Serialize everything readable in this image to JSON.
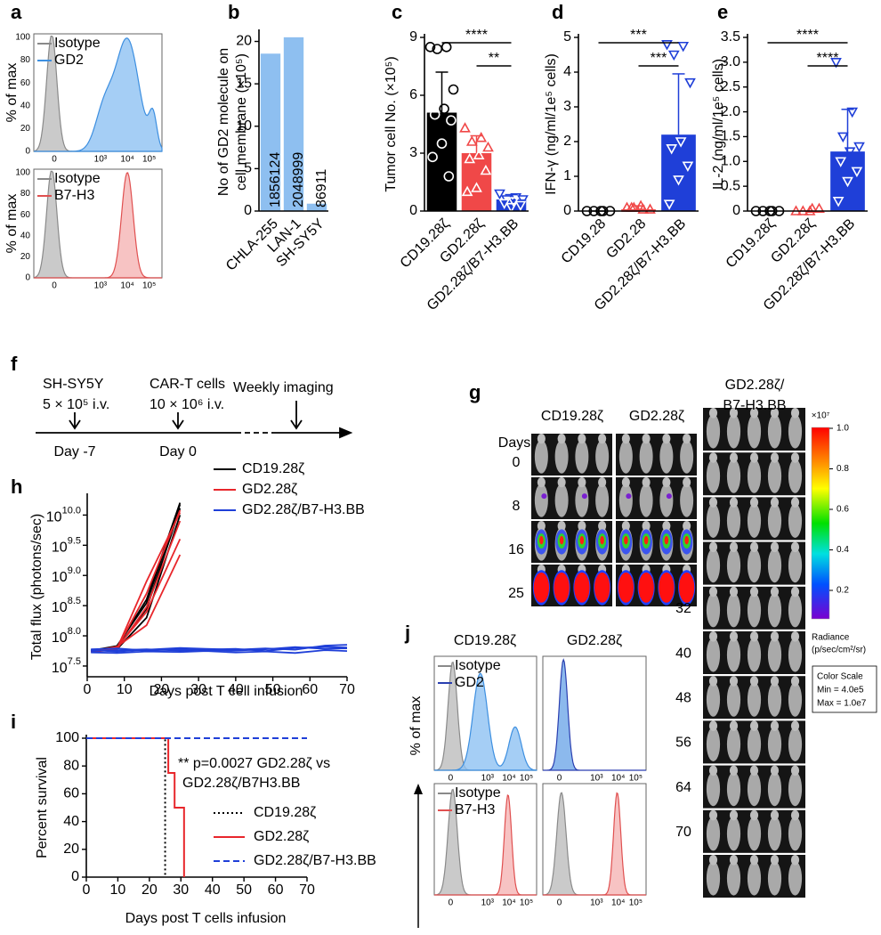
{
  "panel_labels": [
    "a",
    "b",
    "c",
    "d",
    "e",
    "f",
    "g",
    "h",
    "i",
    "j"
  ],
  "flow": {
    "a": {
      "ylabel": "% of max",
      "yticks": [
        "0",
        "20",
        "40",
        "60",
        "80",
        "100"
      ],
      "xticks": [
        "0",
        "10³",
        "10⁴",
        "10⁵"
      ],
      "top_legend": [
        "Isotype",
        "GD2"
      ],
      "bottom_legend": [
        "Isotype",
        "B7-H3"
      ]
    },
    "j": {
      "ylabel": "% of max",
      "columns": [
        "CD19.28ζ",
        "GD2.28ζ"
      ],
      "xticks": [
        "0",
        "10³",
        "10⁴",
        "10⁵"
      ],
      "top_legend": [
        "Isotype",
        "GD2"
      ],
      "bottom_legend": [
        "Isotype",
        "B7-H3"
      ]
    }
  },
  "timeline": {
    "events": [
      {
        "line1": "SH-SY5Y",
        "line2": "5 × 10⁵ i.v.",
        "day": "Day -7"
      },
      {
        "line1": "CAR-T cells",
        "line2": "10 × 10⁶ i.v.",
        "day": "Day 0"
      },
      {
        "line1": "Weekly imaging"
      }
    ]
  },
  "imaging": {
    "days_label": "Days",
    "groups": [
      "CD19.28ζ",
      "GD2.28ζ"
    ],
    "group3": [
      "GD2.28ζ/",
      "B7-H3.BB"
    ],
    "days_left": [
      "0",
      "8",
      "16",
      "25"
    ],
    "days_right": [
      "32",
      "40",
      "48",
      "56",
      "64",
      "70"
    ],
    "colorbar": {
      "unit": "×10⁷",
      "ticks": [
        "1.0",
        "0.8",
        "0.6",
        "0.4",
        "0.2"
      ],
      "title": [
        "Radiance",
        "(p/sec/cm²/sr)"
      ],
      "scale": [
        "Color Scale",
        "Min = 4.0e5",
        "Max = 1.0e7"
      ]
    }
  },
  "chart_data": [
    {
      "type": "bar",
      "ylabel": [
        "No of GD2 molecule on",
        "cell membrane (×10⁵)"
      ],
      "categories": [
        "CHLA-255",
        "LAN-1",
        "SH-SY5Y"
      ],
      "values": [
        18.56124,
        20.48999,
        0.86911
      ],
      "value_labels": [
        "1856124",
        "2048999",
        "86911"
      ],
      "colors": [
        "#8ebff0",
        "#8ebff0",
        "#8ebff0"
      ],
      "ylim": [
        0,
        21
      ],
      "yticks": [
        0,
        5,
        10,
        15,
        20
      ]
    },
    {
      "type": "bar",
      "ylabel": "Tumor cell No. (×10⁵)",
      "categories": [
        "CD19.28ζ",
        "GD2.28ζ",
        "GD2.28ζ/B7-H3.BB"
      ],
      "values": [
        5.1,
        3.0,
        0.6
      ],
      "errors": [
        2.1,
        0.9,
        0.25
      ],
      "points": [
        [
          8.5,
          8.5,
          8.4,
          6.3,
          5.3,
          5.0,
          4.7,
          3.5,
          2.8,
          1.8
        ],
        [
          4.3,
          3.8,
          3.6,
          3.3,
          2.9,
          2.7,
          2.1,
          1.2,
          1.0
        ],
        [
          0.9,
          0.7,
          0.6,
          0.6,
          0.5,
          0.4,
          0.3,
          0.2
        ]
      ],
      "markers": [
        "circle",
        "triangle",
        "triangle-down"
      ],
      "colors": [
        "#000000",
        "#f04848",
        "#1f3fd8"
      ],
      "ylim": [
        0,
        9
      ],
      "yticks": [
        0,
        3,
        6,
        9
      ],
      "significance": [
        "****",
        "**"
      ]
    },
    {
      "type": "bar",
      "ylabel": "IFN-γ (ng/ml/1e⁵ cells)",
      "categories": [
        "CD19.28",
        "GD2.28",
        "GD2.28ζ/B7-H3.BB"
      ],
      "values": [
        0,
        0.05,
        2.2
      ],
      "errors": [
        0,
        0.1,
        1.75
      ],
      "points": [
        [
          0,
          0,
          0,
          0,
          0
        ],
        [
          0.1,
          0.05,
          0.1,
          0.05,
          0.15,
          0.1
        ],
        [
          4.8,
          4.75,
          4.5,
          3.7,
          2.0,
          1.8,
          1.3,
          0.9,
          0.2
        ]
      ],
      "markers": [
        "circle",
        "triangle",
        "triangle-down"
      ],
      "colors": [
        "#000000",
        "#f04848",
        "#1f3fd8"
      ],
      "ylim": [
        0,
        5
      ],
      "yticks": [
        0,
        1,
        2,
        3,
        4,
        5
      ],
      "significance": [
        "***",
        "***"
      ]
    },
    {
      "type": "bar",
      "ylabel": "IL-2 (ng/ml/1e⁵ cells)",
      "categories": [
        "CD19.28ζ",
        "GD2.28ζ",
        "GD2.28ζ/B7-H3.BB"
      ],
      "values": [
        0,
        0,
        1.2
      ],
      "errors": [
        0,
        0,
        0.85
      ],
      "points": [
        [
          0,
          0,
          0,
          0,
          0
        ],
        [
          0,
          0.05,
          0,
          0.05,
          0
        ],
        [
          3.0,
          2.0,
          1.5,
          1.3,
          1.2,
          1.0,
          0.8,
          0.6,
          0.2
        ]
      ],
      "markers": [
        "circle",
        "triangle",
        "triangle-down"
      ],
      "colors": [
        "#000000",
        "#f04848",
        "#1f3fd8"
      ],
      "ylim": [
        0,
        3.5
      ],
      "yticks": [
        0,
        0.5,
        {
          "value": 1,
          "label": "1.0"
        },
        1.5,
        {
          "value": 2,
          "label": "2.0"
        },
        2.5,
        {
          "value": 3,
          "label": "3.0"
        },
        3.5
      ],
      "significance": [
        "****",
        "****"
      ]
    },
    {
      "type": "line",
      "log": true,
      "ylabel": "Total flux (photons/sec)",
      "xlabel": "Days post T cell infusion",
      "x": [
        1,
        8,
        16,
        25,
        32,
        40,
        48,
        56,
        64,
        70
      ],
      "xlim": [
        0,
        70
      ],
      "xticks": [
        0,
        10,
        20,
        30,
        40,
        50,
        60,
        70
      ],
      "ylim": [
        21000000,
        20000000000
      ],
      "yticks": [
        {
          "value": 31622777,
          "label": "10",
          "sup": "7.5"
        },
        {
          "value": 100000000,
          "label": "10",
          "sup": "8.0"
        },
        {
          "value": 316227766,
          "label": "10",
          "sup": "8.5"
        },
        {
          "value": 1000000000,
          "label": "10",
          "sup": "9.0"
        },
        {
          "value": 3162277660,
          "label": "10",
          "sup": "9.5"
        },
        {
          "value": 10000000000,
          "label": "10",
          "sup": "10.0"
        }
      ],
      "series": [
        {
          "name": "CD19.28ζ",
          "color": "#000000",
          "lines": [
            [
              56000000.0,
              65000000.0,
              400000000.0,
              16000000000.0,
              null,
              null,
              null,
              null,
              null,
              null
            ],
            [
              58000000.0,
              63000000.0,
              280000000.0,
              13000000000.0,
              null,
              null,
              null,
              null,
              null,
              null
            ],
            [
              55000000.0,
              60000000.0,
              200000000.0,
              10000000000.0,
              null,
              null,
              null,
              null,
              null,
              null
            ],
            [
              57000000.0,
              68000000.0,
              350000000.0,
              15000000000.0,
              null,
              null,
              null,
              null,
              null,
              null
            ]
          ]
        },
        {
          "name": "GD2.28ζ",
          "color": "#e8262b",
          "lines": [
            [
              55000000.0,
              62000000.0,
              500000000.0,
              12000000000.0,
              null,
              null,
              null,
              null,
              null,
              null
            ],
            [
              54000000.0,
              60000000.0,
              300000000.0,
              8000000000.0,
              null,
              null,
              null,
              null,
              null,
              null
            ],
            [
              56000000.0,
              66000000.0,
              150000000.0,
              2200000000.0,
              null,
              null,
              null,
              null,
              null,
              null
            ],
            [
              55000000.0,
              61000000.0,
              800000000.0,
              11000000000.0,
              null,
              null,
              null,
              null,
              null,
              null
            ],
            [
              56000000.0,
              64000000.0,
              250000000.0,
              4000000000.0,
              null,
              null,
              null,
              null,
              null,
              null
            ]
          ]
        },
        {
          "name": "GD2.28ζ/B7-H3.BB",
          "color": "#1f3fd8",
          "lines": [
            [
              53000000.0,
              52000000.0,
              55000000.0,
              54000000.0,
              56000000.0,
              53000000.0,
              55000000.0,
              52000000.0,
              58000000.0,
              56000000.0
            ],
            [
              56000000.0,
              58000000.0,
              60000000.0,
              57000000.0,
              59000000.0,
              61000000.0,
              56000000.0,
              63000000.0,
              66000000.0,
              64000000.0
            ],
            [
              60000000.0,
              62000000.0,
              57000000.0,
              60000000.0,
              58000000.0,
              57000000.0,
              60000000.0,
              65000000.0,
              61000000.0,
              62000000.0
            ],
            [
              58000000.0,
              55000000.0,
              59000000.0,
              63000000.0,
              61000000.0,
              59000000.0,
              62000000.0,
              59000000.0,
              69000000.0,
              71000000.0
            ]
          ]
        }
      ]
    },
    {
      "type": "step",
      "ylabel": "Percent survival",
      "xlabel": "Days post T cells infusion",
      "xlim": [
        0,
        70
      ],
      "xticks": [
        0,
        10,
        20,
        30,
        40,
        50,
        60,
        70
      ],
      "ylim": [
        0,
        100
      ],
      "yticks": [
        0,
        20,
        40,
        60,
        80,
        100
      ],
      "annotation": [
        "** p=0.0027 GD2.28ζ vs",
        "GD2.28ζ/B7H3.BB"
      ],
      "series": [
        {
          "name": "CD19.28ζ",
          "color": "#000000",
          "dash": "dotted",
          "x": [
            0,
            25
          ],
          "values": [
            100,
            0
          ]
        },
        {
          "name": "GD2.28ζ",
          "color": "#e8262b",
          "dash": "solid",
          "x": [
            0,
            26,
            28,
            31
          ],
          "values": [
            100,
            75,
            50,
            0
          ]
        },
        {
          "name": "GD2.28ζ/B7-H3.BB",
          "color": "#1f3fd8",
          "dash": "dashed",
          "x": [
            0,
            70
          ],
          "values": [
            100,
            100
          ]
        }
      ]
    }
  ]
}
